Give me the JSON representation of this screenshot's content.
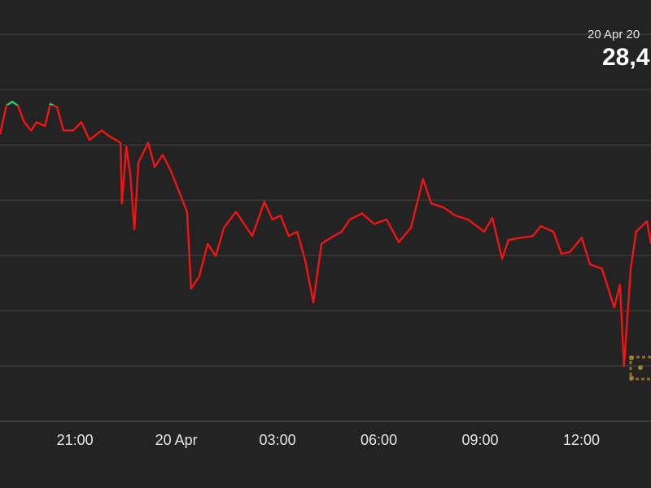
{
  "chart_data": {
    "type": "line",
    "hover_date": "20 Apr 20",
    "hover_value": "28,4",
    "x": [
      18.78,
      18.97,
      19.14,
      19.31,
      19.5,
      19.7,
      19.86,
      20.11,
      20.27,
      20.47,
      20.66,
      20.95,
      21.19,
      21.43,
      21.79,
      22.03,
      22.35,
      22.39,
      22.52,
      22.64,
      22.76,
      22.88,
      23.17,
      23.36,
      23.6,
      23.84,
      24.08,
      24.32,
      24.44,
      24.68,
      24.93,
      25.17,
      25.41,
      25.77,
      26.01,
      26.25,
      26.61,
      26.85,
      27.09,
      27.33,
      27.58,
      27.82,
      28.06,
      28.3,
      28.66,
      28.9,
      29.14,
      29.5,
      29.86,
      30.23,
      30.59,
      30.95,
      31.31,
      31.55,
      31.91,
      32.27,
      32.64,
      33.12,
      33.36,
      33.65,
      33.84,
      34.2,
      34.56,
      34.8,
      35.17,
      35.41,
      35.65,
      36.01,
      36.25,
      36.61,
      36.97,
      37.14,
      37.26,
      37.46,
      37.62,
      37.94,
      38.06
    ],
    "values": [
      5.19,
      5.71,
      5.78,
      5.71,
      5.41,
      5.26,
      5.41,
      5.34,
      5.74,
      5.68,
      5.26,
      5.26,
      5.41,
      5.09,
      5.26,
      5.15,
      5.04,
      3.94,
      4.97,
      4.46,
      3.47,
      4.68,
      5.04,
      4.6,
      4.82,
      4.53,
      4.16,
      3.79,
      2.4,
      2.62,
      3.21,
      2.99,
      3.5,
      3.79,
      3.57,
      3.35,
      3.97,
      3.65,
      3.72,
      3.35,
      3.43,
      2.91,
      2.15,
      3.21,
      3.35,
      3.43,
      3.65,
      3.76,
      3.57,
      3.65,
      3.24,
      3.5,
      4.38,
      3.94,
      3.87,
      3.72,
      3.65,
      3.43,
      3.68,
      2.94,
      3.28,
      3.32,
      3.35,
      3.53,
      3.43,
      3.03,
      3.06,
      3.32,
      2.84,
      2.76,
      2.06,
      2.47,
      1.0,
      2.76,
      3.43,
      3.62,
      3.21
    ],
    "baseline": 5.72,
    "up_color": "#2ecc71",
    "down_color": "#f01414",
    "xlim": [
      18.78,
      38.06
    ],
    "ylim": [
      0,
      7.62
    ],
    "xticks": [
      {
        "value": 21,
        "label": "21:00"
      },
      {
        "value": 24,
        "label": "20 Apr"
      },
      {
        "value": 27,
        "label": "03:00"
      },
      {
        "value": 30,
        "label": "06:00"
      },
      {
        "value": 33,
        "label": "09:00"
      },
      {
        "value": 36,
        "label": "12:00"
      }
    ],
    "yticks": [
      0,
      1,
      2,
      3,
      4,
      5,
      6,
      7
    ],
    "grid": true
  }
}
